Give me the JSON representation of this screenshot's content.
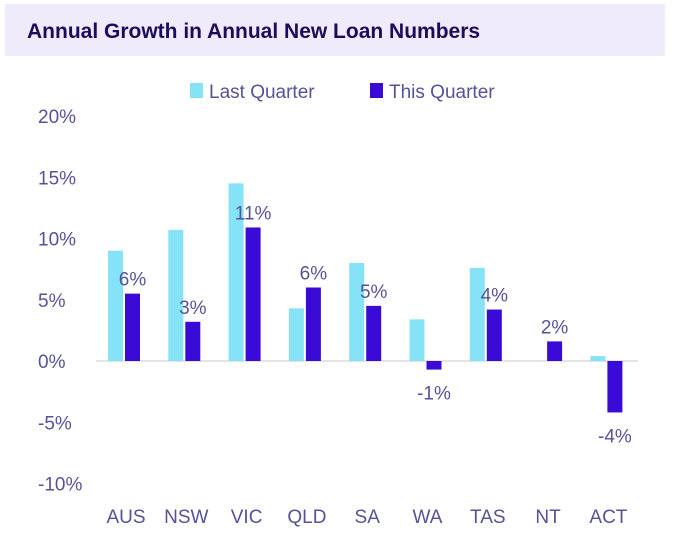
{
  "chart_data": {
    "type": "bar",
    "title": "Annual Growth in Annual New Loan Numbers",
    "categories": [
      "AUS",
      "NSW",
      "VIC",
      "QLD",
      "SA",
      "WA",
      "TAS",
      "NT",
      "ACT"
    ],
    "series": [
      {
        "name": "Last Quarter",
        "color": "#86e3f7",
        "values": [
          9.0,
          10.7,
          14.5,
          4.3,
          8.0,
          3.4,
          7.6,
          0,
          0.4
        ]
      },
      {
        "name": "This Quarter",
        "color": "#3a0ad6",
        "values": [
          5.5,
          3.2,
          10.9,
          6.0,
          4.5,
          -0.7,
          4.2,
          1.6,
          -4.2
        ],
        "data_labels": [
          "6%",
          "3%",
          "11%",
          "6%",
          "5%",
          "-1%",
          "4%",
          "2%",
          "-4%"
        ]
      }
    ],
    "ylim": [
      -10,
      20
    ],
    "yticks": [
      "-10%",
      "-5%",
      "0%",
      "5%",
      "10%",
      "15%",
      "20%"
    ],
    "ytick_values": [
      -10,
      -5,
      0,
      5,
      10,
      15,
      20
    ],
    "legend": "top",
    "grid": false
  }
}
